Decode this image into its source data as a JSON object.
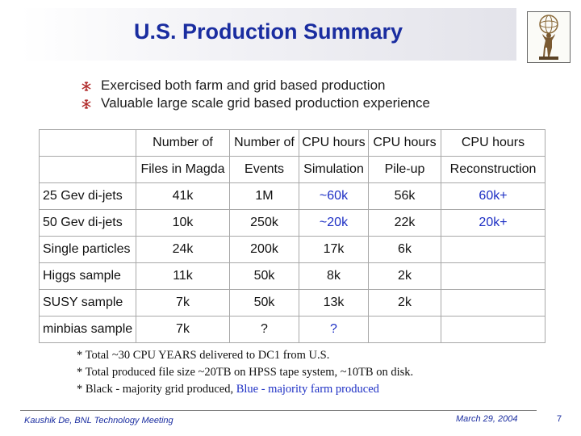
{
  "title": "U.S. Production Summary",
  "logo_icon": "atlas-logo-icon",
  "bullets": [
    "Exercised both farm and grid based production",
    "Valuable large scale grid based production experience"
  ],
  "bullet_icon": "snowflake-bullet-icon",
  "table": {
    "header_row1": [
      "",
      "Number of",
      "Number of",
      "CPU hours",
      "CPU hours",
      "CPU hours"
    ],
    "header_row2": [
      "",
      "Files in Magda",
      "Events",
      "Simulation",
      "Pile-up",
      "Reconstruction"
    ],
    "rows": [
      [
        "25 Gev di-jets",
        "41k",
        "1M",
        "~60k",
        "56k",
        "60k+"
      ],
      [
        "50 Gev di-jets",
        "10k",
        "250k",
        "~20k",
        "22k",
        "20k+"
      ],
      [
        "Single particles",
        "24k",
        "200k",
        "17k",
        "6k",
        ""
      ],
      [
        "Higgs sample",
        "11k",
        "50k",
        "8k",
        "2k",
        ""
      ],
      [
        "SUSY sample",
        "7k",
        "50k",
        "13k",
        "2k",
        ""
      ],
      [
        "minbias sample",
        "7k",
        "?",
        "?",
        "",
        ""
      ]
    ]
  },
  "notes": {
    "line1": "* Total ~30 CPU YEARS delivered to DC1 from U.S.",
    "line2": "* Total produced file size ~20TB on HPSS tape system, ~10TB on disk.",
    "line3_black": "* Black - majority grid produced, ",
    "line3_blue": "Blue - majority farm produced"
  },
  "footer": {
    "author": "Kaushik De, BNL Technology Meeting",
    "date": "March 29, 2004",
    "page": "7"
  },
  "colors": {
    "title": "#1a2da0",
    "farm_blue": "#1d2fc4",
    "grid_border": "#a8a8a8"
  }
}
